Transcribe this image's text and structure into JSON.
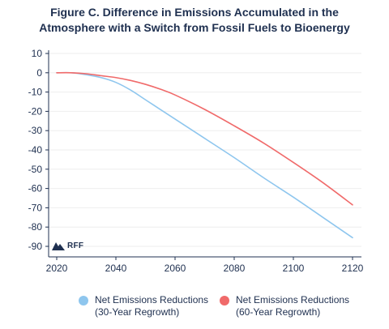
{
  "title_lines": [
    "Figure C. Difference in Emissions Accumulated in the",
    "Atmosphere with a Switch from Fossil Fuels to Bioenergy"
  ],
  "logo": {
    "text": "RFF"
  },
  "colors": {
    "series_30": "#8ec6ee",
    "series_60": "#f06a6a",
    "axis": "#1f3050",
    "grid": "#eeeeee"
  },
  "legend": [
    {
      "line1": "Net Emissions Reductions",
      "line2": "(30-Year Regrowth)",
      "color": "#8ec6ee"
    },
    {
      "line1": "Net Emissions Reductions",
      "line2": "(60-Year Regrowth)",
      "color": "#f06a6a"
    }
  ],
  "chart_data": {
    "type": "line",
    "title": "Figure C. Difference in Emissions Accumulated in the Atmosphere with a Switch from Fossil Fuels to Bioenergy",
    "xlabel": "",
    "ylabel": "",
    "xlim": [
      2020,
      2120
    ],
    "ylim": [
      -95,
      10
    ],
    "x_ticks": [
      2020,
      2040,
      2060,
      2080,
      2100,
      2120
    ],
    "y_ticks": [
      10,
      0,
      -10,
      -20,
      -30,
      -40,
      -50,
      -60,
      -70,
      -80,
      -90
    ],
    "legend_position": "bottom",
    "series": [
      {
        "name": "Net Emissions Reductions (30-Year Regrowth)",
        "color": "#8ec6ee",
        "x": [
          2020,
          2025,
          2030,
          2035,
          2040,
          2045,
          2050,
          2055,
          2060,
          2070,
          2080,
          2090,
          2100,
          2110,
          2120
        ],
        "y": [
          0,
          0,
          -1,
          -2.5,
          -5,
          -9,
          -14,
          -19,
          -24,
          -34,
          -44,
          -54.5,
          -64.5,
          -75,
          -85.5
        ]
      },
      {
        "name": "Net Emissions Reductions (60-Year Regrowth)",
        "color": "#f06a6a",
        "x": [
          2020,
          2025,
          2030,
          2035,
          2040,
          2045,
          2050,
          2055,
          2060,
          2070,
          2080,
          2090,
          2100,
          2110,
          2120
        ],
        "y": [
          0,
          0,
          -0.5,
          -1.5,
          -2.5,
          -4,
          -6,
          -8.5,
          -11.5,
          -19,
          -27.5,
          -36.5,
          -46.5,
          -57,
          -68.5
        ]
      }
    ]
  }
}
